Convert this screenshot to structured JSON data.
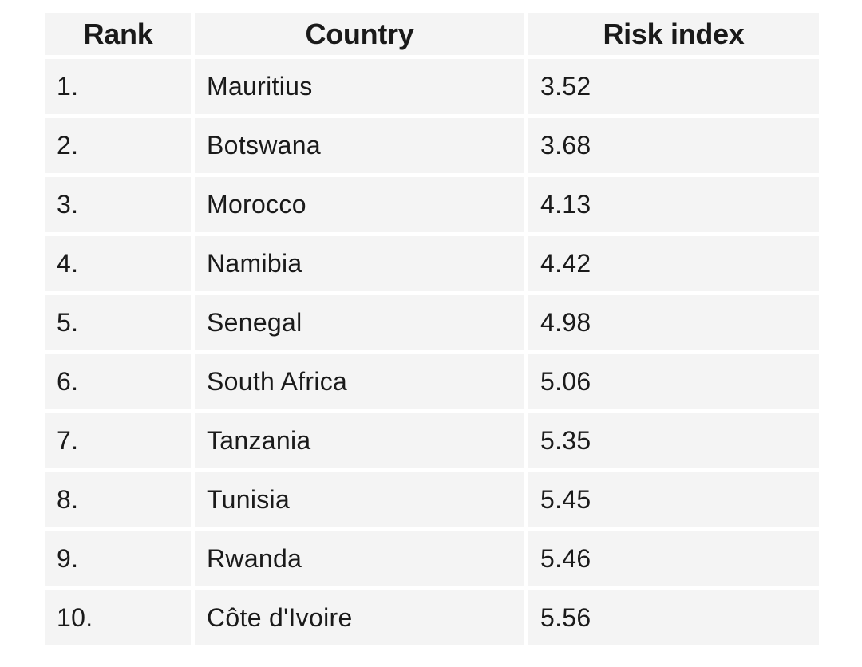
{
  "table": {
    "headers": [
      "Rank",
      "Country",
      "Risk index"
    ],
    "rows": [
      {
        "rank": "1.",
        "country": "Mauritius",
        "risk": "3.52"
      },
      {
        "rank": "2.",
        "country": "Botswana",
        "risk": "3.68"
      },
      {
        "rank": "3.",
        "country": "Morocco",
        "risk": "4.13"
      },
      {
        "rank": "4.",
        "country": "Namibia",
        "risk": "4.42"
      },
      {
        "rank": "5.",
        "country": "Senegal",
        "risk": "4.98"
      },
      {
        "rank": "6.",
        "country": "South Africa",
        "risk": "5.06"
      },
      {
        "rank": "7.",
        "country": "Tanzania",
        "risk": "5.35"
      },
      {
        "rank": "8.",
        "country": "Tunisia",
        "risk": "5.45"
      },
      {
        "rank": "9.",
        "country": "Rwanda",
        "risk": "5.46"
      },
      {
        "rank": "10.",
        "country": "Côte d'Ivoire",
        "risk": "5.56"
      }
    ]
  },
  "colors": {
    "cell_background": "#f4f4f4",
    "page_background": "#ffffff",
    "text": "#1a1a1a"
  }
}
